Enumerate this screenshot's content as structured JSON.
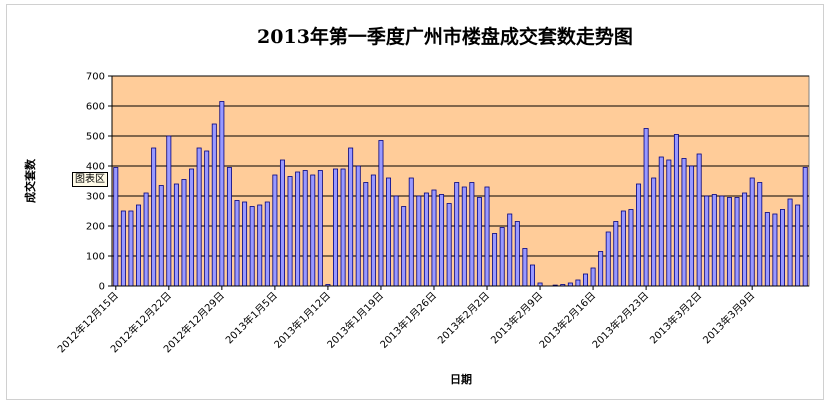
{
  "chart_data": {
    "type": "bar",
    "title": "2013年第一季度广州市楼盘成交套数走势图",
    "xlabel": "日期",
    "ylabel": "成交套数",
    "ylim": [
      0,
      700
    ],
    "yticks": [
      0,
      100,
      200,
      300,
      400,
      500,
      600,
      700
    ],
    "grid": true,
    "legend": "none",
    "x_start": "2012-12-15",
    "x_tick_labels": [
      "2012年12月15日",
      "2012年12月22日",
      "2012年12月29日",
      "2013年1月5日",
      "2013年1月12日",
      "2013年1月19日",
      "2013年1月26日",
      "2013年2月2日",
      "2013年2月9日",
      "2013年2月16日",
      "2013年2月23日",
      "2013年3月2日",
      "2013年3月9日"
    ],
    "series": [
      {
        "values": [
          395,
          250,
          250,
          270,
          310,
          460,
          335,
          500,
          340,
          355,
          390,
          460,
          450,
          540,
          615,
          395,
          285,
          280,
          265,
          270,
          280,
          370,
          420,
          365,
          380,
          385,
          370,
          385,
          5,
          390,
          390,
          460,
          400,
          345,
          370,
          485,
          360,
          300,
          265,
          360,
          300,
          310,
          320,
          305,
          275,
          345,
          330,
          345,
          295,
          330,
          175,
          195,
          240,
          215,
          125,
          70,
          10,
          0,
          3,
          5,
          10,
          20,
          40,
          60,
          115,
          180,
          215,
          250,
          255,
          340,
          525,
          360,
          430,
          420,
          505,
          425,
          400,
          440,
          300,
          305,
          300,
          295,
          295,
          310,
          360,
          345,
          245,
          240,
          255,
          290,
          270,
          395
        ]
      }
    ],
    "colors": {
      "plot_background": "#FFCC99",
      "bar_fill": "#9999FF",
      "bar_stroke": "#000080",
      "gridline": "#000000"
    }
  },
  "ui": {
    "chart_area_tag": "图表区"
  }
}
